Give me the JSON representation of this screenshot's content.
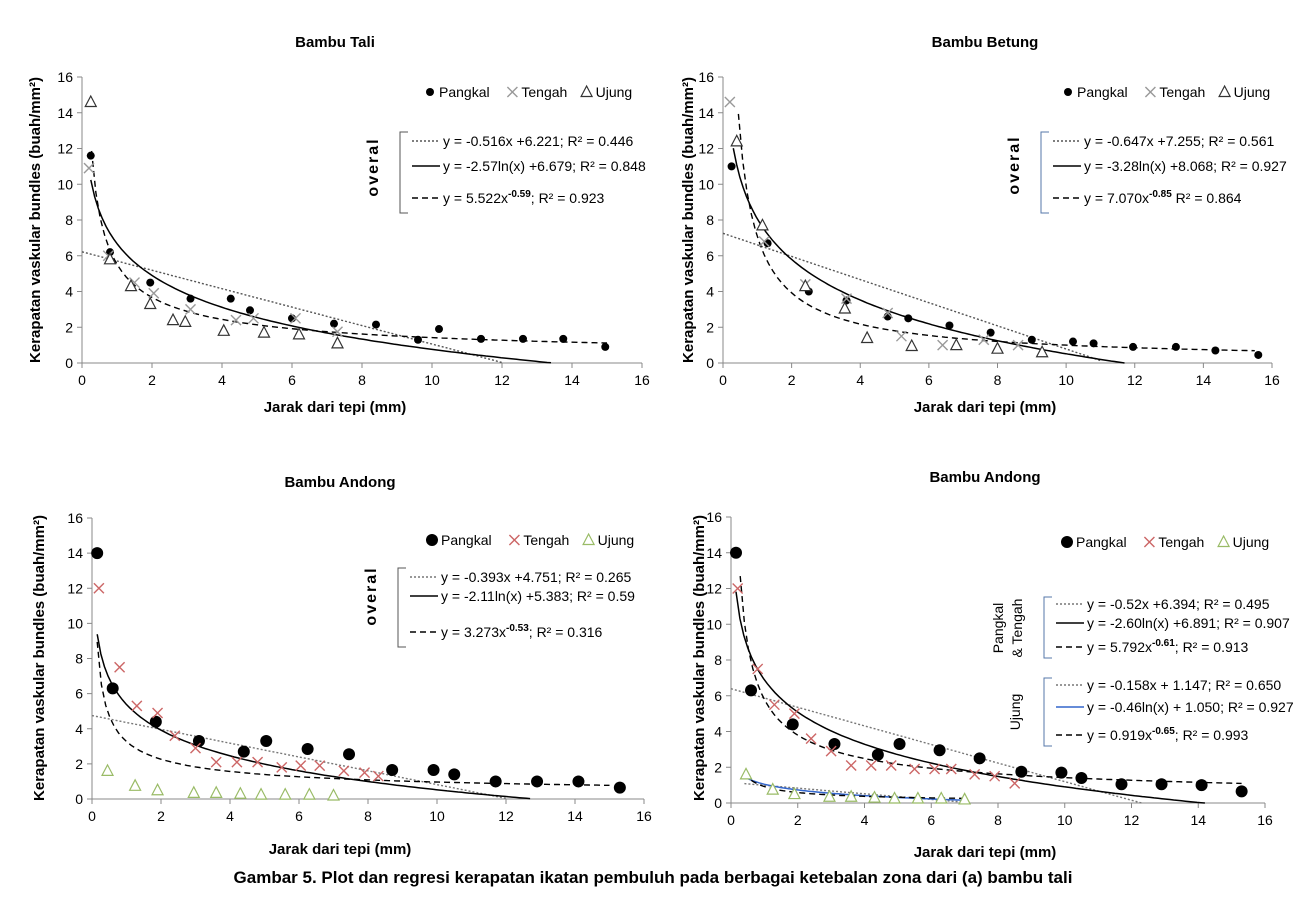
{
  "figure": {
    "caption": "Gambar 5. Plot dan regresi kerapatan ikatan pembuluh pada berbagai ketebalan zona dari (a) bambu tali"
  },
  "chart_data": [
    {
      "type": "scatter",
      "title": "Bambu Tali",
      "xlabel": "Jarak dari tepi (mm)",
      "ylabel": "Kerapatan vaskular bundles (buah/mm²)",
      "xlim": [
        0,
        16
      ],
      "ylim": [
        0,
        16
      ],
      "xticks": [
        "0",
        "2",
        "4",
        "6",
        "8",
        "10",
        "12",
        "14",
        "16"
      ],
      "yticks": [
        "0",
        "2",
        "4",
        "6",
        "8",
        "10",
        "12",
        "14",
        "16"
      ],
      "grid": false,
      "legend_position": "top-right",
      "series": [
        {
          "name": "Pangkal",
          "marker": "dot",
          "color": "#000000",
          "points": [
            [
              0.25,
              11.6
            ],
            [
              0.8,
              6.2
            ],
            [
              1.95,
              4.5
            ],
            [
              3.1,
              3.6
            ],
            [
              4.25,
              3.6
            ],
            [
              4.8,
              2.95
            ],
            [
              6.0,
              2.5
            ],
            [
              7.2,
              2.2
            ],
            [
              8.4,
              2.15
            ],
            [
              9.6,
              1.3
            ],
            [
              10.2,
              1.9
            ],
            [
              11.4,
              1.35
            ],
            [
              12.6,
              1.35
            ],
            [
              13.75,
              1.35
            ],
            [
              14.95,
              0.9
            ]
          ]
        },
        {
          "name": "Tengah",
          "marker": "cross",
          "color": "#999999",
          "points": [
            [
              0.2,
              10.9
            ],
            [
              0.75,
              6.0
            ],
            [
              1.5,
              4.5
            ],
            [
              2.05,
              3.9
            ],
            [
              3.1,
              3.0
            ],
            [
              4.4,
              2.4
            ],
            [
              4.9,
              2.5
            ],
            [
              6.1,
              2.5
            ],
            [
              7.3,
              1.75
            ]
          ]
        },
        {
          "name": "Ujung",
          "marker": "triangle",
          "color": "#333333",
          "points": [
            [
              0.25,
              14.6
            ],
            [
              0.8,
              5.8
            ],
            [
              1.4,
              4.3
            ],
            [
              1.95,
              3.3
            ],
            [
              2.6,
              2.4
            ],
            [
              2.95,
              2.3
            ],
            [
              4.05,
              1.8
            ],
            [
              5.2,
              1.7
            ],
            [
              6.2,
              1.6
            ],
            [
              7.3,
              1.1
            ]
          ]
        }
      ],
      "regression_group": "overal",
      "regressions": [
        {
          "label": "y = -0.516x +6.221; R² = 0.446",
          "model": "linear",
          "a": -0.516,
          "b": 6.221,
          "style": "dotted",
          "color": "#555555",
          "range": [
            0,
            12
          ]
        },
        {
          "label": "y = -2.57ln(x) +6.679; R² = 0.848",
          "model": "log",
          "a": -2.57,
          "b": 6.679,
          "style": "solid",
          "color": "#000000",
          "range": [
            0.25,
            13.4
          ]
        },
        {
          "label": "y = 5.522x^-0.59; R² = 0.923",
          "model": "power",
          "a": 5.522,
          "b": -0.59,
          "style": "dashed",
          "color": "#000000",
          "range": [
            0.15,
            15
          ]
        }
      ]
    },
    {
      "type": "scatter",
      "title": "Bambu Betung",
      "xlabel": "Jarak dari tepi (mm)",
      "ylabel": "Kerapatan vaskular bundles (buah/mm²)",
      "xlim": [
        0,
        16
      ],
      "ylim": [
        0,
        16
      ],
      "xticks": [
        "0",
        "2",
        "4",
        "6",
        "8",
        "10",
        "12",
        "14",
        "16"
      ],
      "yticks": [
        "0",
        "2",
        "4",
        "6",
        "8",
        "10",
        "12",
        "14",
        "16"
      ],
      "grid": false,
      "legend_position": "top-right",
      "series": [
        {
          "name": "Pangkal",
          "marker": "dot",
          "color": "#000000",
          "points": [
            [
              0.25,
              11.0
            ],
            [
              1.3,
              6.7
            ],
            [
              2.5,
              4.0
            ],
            [
              3.6,
              3.5
            ],
            [
              4.8,
              2.6
            ],
            [
              5.4,
              2.5
            ],
            [
              6.6,
              2.1
            ],
            [
              7.8,
              1.7
            ],
            [
              9.0,
              1.3
            ],
            [
              10.2,
              1.2
            ],
            [
              10.8,
              1.1
            ],
            [
              11.95,
              0.9
            ],
            [
              13.2,
              0.9
            ],
            [
              14.35,
              0.7
            ],
            [
              15.6,
              0.45
            ]
          ]
        },
        {
          "name": "Tengah",
          "marker": "cross",
          "color": "#999999",
          "points": [
            [
              0.2,
              14.6
            ],
            [
              1.2,
              6.8
            ],
            [
              2.4,
              4.4
            ],
            [
              3.6,
              3.6
            ],
            [
              4.8,
              2.8
            ],
            [
              5.2,
              1.5
            ],
            [
              6.4,
              1.0
            ],
            [
              7.6,
              1.3
            ],
            [
              8.6,
              1.0
            ]
          ]
        },
        {
          "name": "Ujung",
          "marker": "triangle",
          "color": "#333333",
          "points": [
            [
              0.4,
              12.4
            ],
            [
              1.15,
              7.7
            ],
            [
              2.4,
              4.3
            ],
            [
              3.55,
              3.05
            ],
            [
              4.2,
              1.4
            ],
            [
              5.5,
              0.95
            ],
            [
              6.8,
              1.0
            ],
            [
              8.0,
              0.8
            ],
            [
              9.3,
              0.6
            ]
          ]
        }
      ],
      "regression_group": "overal",
      "regressions": [
        {
          "label": "y = -0.647x +7.255; R² = 0.561",
          "model": "linear",
          "a": -0.647,
          "b": 7.255,
          "style": "dotted",
          "color": "#555555",
          "range": [
            0,
            11
          ]
        },
        {
          "label": "y = -3.28ln(x) +8.068; R² = 0.927",
          "model": "log",
          "a": -3.28,
          "b": 8.068,
          "style": "solid",
          "color": "#000000",
          "range": [
            0.3,
            11.7
          ]
        },
        {
          "label": "y = 7.070x^-0.85 R² = 0.864",
          "model": "power",
          "a": 7.07,
          "b": -0.85,
          "style": "dashed",
          "color": "#000000",
          "range": [
            0.45,
            15.5
          ]
        }
      ]
    },
    {
      "type": "scatter",
      "title": "Bambu Andong",
      "xlabel": "Jarak dari tepi (mm)",
      "ylabel": "Kerapatan vaskular bundles (buah/mm²)",
      "xlim": [
        0,
        16
      ],
      "ylim": [
        0,
        16
      ],
      "xticks": [
        "0",
        "2",
        "4",
        "6",
        "8",
        "10",
        "12",
        "14",
        "16"
      ],
      "yticks": [
        "0",
        "2",
        "4",
        "6",
        "8",
        "10",
        "12",
        "14",
        "16"
      ],
      "grid": false,
      "legend_position": "top-right",
      "series": [
        {
          "name": "Pangkal",
          "marker": "bigdot",
          "color": "#000000",
          "points": [
            [
              0.15,
              14.0
            ],
            [
              0.6,
              6.3
            ],
            [
              1.85,
              4.4
            ],
            [
              3.1,
              3.3
            ],
            [
              4.4,
              2.7
            ],
            [
              5.05,
              3.3
            ],
            [
              6.25,
              2.85
            ],
            [
              7.45,
              2.55
            ],
            [
              8.7,
              1.65
            ],
            [
              9.9,
              1.65
            ],
            [
              10.5,
              1.4
            ],
            [
              11.7,
              1.0
            ],
            [
              12.9,
              1.0
            ],
            [
              14.1,
              1.0
            ],
            [
              15.3,
              0.65
            ]
          ]
        },
        {
          "name": "Tengah",
          "marker": "cross",
          "color": "#cc6666",
          "points": [
            [
              0.2,
              12.0
            ],
            [
              0.8,
              7.5
            ],
            [
              1.3,
              5.3
            ],
            [
              1.9,
              4.9
            ],
            [
              2.4,
              3.6
            ],
            [
              3.0,
              2.9
            ],
            [
              3.6,
              2.1
            ],
            [
              4.2,
              2.1
            ],
            [
              4.8,
              2.1
            ],
            [
              5.5,
              1.8
            ],
            [
              6.05,
              1.9
            ],
            [
              6.6,
              1.9
            ],
            [
              7.3,
              1.6
            ],
            [
              7.9,
              1.5
            ],
            [
              8.3,
              1.3
            ]
          ]
        },
        {
          "name": "Ujung",
          "marker": "triangle",
          "color": "#99bb66",
          "points": [
            [
              0.45,
              1.6
            ],
            [
              1.25,
              0.75
            ],
            [
              1.9,
              0.5
            ],
            [
              2.95,
              0.35
            ],
            [
              3.6,
              0.35
            ],
            [
              4.3,
              0.3
            ],
            [
              4.9,
              0.25
            ],
            [
              5.6,
              0.25
            ],
            [
              6.3,
              0.25
            ],
            [
              7.0,
              0.2
            ]
          ]
        }
      ],
      "regression_group": "overal",
      "regressions": [
        {
          "label": "y = -0.393x +4.751; R² = 0.265",
          "model": "linear",
          "a": -0.393,
          "b": 4.751,
          "style": "dotted",
          "color": "#777777",
          "range": [
            0,
            12
          ]
        },
        {
          "label": "y = -2.11ln(x) +5.383; R² = 0.59",
          "model": "log",
          "a": -2.11,
          "b": 5.383,
          "style": "solid",
          "color": "#000000",
          "range": [
            0.15,
            12.7
          ]
        },
        {
          "label": "y = 3.273x^-0.53; R² = 0.316",
          "model": "power",
          "a": 3.273,
          "b": -0.53,
          "style": "dashed",
          "color": "#000000",
          "range": [
            0.15,
            15
          ]
        }
      ]
    },
    {
      "type": "scatter",
      "title": "Bambu Andong",
      "xlabel": "Jarak dari tepi (mm)",
      "ylabel": "Kerapatan vaskular bundles (buah/mm²)",
      "xlim": [
        0,
        16
      ],
      "ylim": [
        0,
        16
      ],
      "xticks": [
        "0",
        "2",
        "4",
        "6",
        "8",
        "10",
        "12",
        "14",
        "16"
      ],
      "yticks": [
        "0",
        "2",
        "4",
        "6",
        "8",
        "10",
        "12",
        "14",
        "16"
      ],
      "grid": false,
      "legend_position": "top-right",
      "series": [
        {
          "name": "Pangkal",
          "marker": "bigdot",
          "color": "#000000",
          "points": [
            [
              0.15,
              14.0
            ],
            [
              0.6,
              6.3
            ],
            [
              1.85,
              4.4
            ],
            [
              3.1,
              3.3
            ],
            [
              4.4,
              2.7
            ],
            [
              5.05,
              3.3
            ],
            [
              6.25,
              2.95
            ],
            [
              7.45,
              2.5
            ],
            [
              8.7,
              1.75
            ],
            [
              9.9,
              1.7
            ],
            [
              10.5,
              1.4
            ],
            [
              11.7,
              1.05
            ],
            [
              12.9,
              1.05
            ],
            [
              14.1,
              1.0
            ],
            [
              15.3,
              0.65
            ]
          ]
        },
        {
          "name": "Tengah",
          "marker": "cross",
          "color": "#cc6666",
          "points": [
            [
              0.2,
              12.0
            ],
            [
              0.8,
              7.5
            ],
            [
              1.3,
              5.5
            ],
            [
              1.9,
              5.0
            ],
            [
              2.4,
              3.6
            ],
            [
              3.0,
              2.9
            ],
            [
              3.6,
              2.1
            ],
            [
              4.2,
              2.1
            ],
            [
              4.8,
              2.1
            ],
            [
              5.5,
              1.9
            ],
            [
              6.1,
              1.9
            ],
            [
              6.6,
              1.9
            ],
            [
              7.3,
              1.6
            ],
            [
              7.9,
              1.5
            ],
            [
              8.5,
              1.1
            ]
          ]
        },
        {
          "name": "Ujung",
          "marker": "triangle",
          "color": "#99bb66",
          "points": [
            [
              0.45,
              1.6
            ],
            [
              1.25,
              0.75
            ],
            [
              1.9,
              0.5
            ],
            [
              2.95,
              0.35
            ],
            [
              3.6,
              0.35
            ],
            [
              4.3,
              0.3
            ],
            [
              4.9,
              0.25
            ],
            [
              5.6,
              0.25
            ],
            [
              6.3,
              0.25
            ],
            [
              7.0,
              0.2
            ]
          ]
        }
      ],
      "regression_groups": [
        {
          "name": "Pangkal & Tengah",
          "lines": [
            {
              "label": "y = -0.52x +6.394; R² = 0.495",
              "model": "linear",
              "a": -0.52,
              "b": 6.394,
              "style": "dotted",
              "color": "#777777",
              "range": [
                0,
                12.3
              ]
            },
            {
              "label": "y = -2.60ln(x) +6.891; R² = 0.907",
              "model": "log",
              "a": -2.6,
              "b": 6.891,
              "style": "solid",
              "color": "#000000",
              "range": [
                0.15,
                14.2
              ]
            },
            {
              "label": "y = 5.792x^-0.61; R² = 0.913",
              "model": "power",
              "a": 5.792,
              "b": -0.61,
              "style": "dashed",
              "color": "#000000",
              "range": [
                0.15,
                15.3
              ]
            }
          ]
        },
        {
          "name": "Ujung",
          "lines": [
            {
              "label": "y = -0.158x + 1.147; R² = 0.650",
              "model": "linear",
              "a": -0.158,
              "b": 1.147,
              "style": "dotted",
              "color": "#777777",
              "range": [
                0.4,
                7
              ]
            },
            {
              "label": "y = -0.46ln(x) + 1.050; R² = 0.927",
              "model": "log",
              "a": -0.46,
              "b": 1.05,
              "style": "solid",
              "color": "#3366cc",
              "range": [
                0.4,
                7
              ]
            },
            {
              "label": "y = 0.919x^-0.65; R² = 0.993",
              "model": "power",
              "a": 0.919,
              "b": -0.65,
              "style": "dashed",
              "color": "#000000",
              "range": [
                0.4,
                7
              ]
            }
          ]
        }
      ]
    }
  ]
}
